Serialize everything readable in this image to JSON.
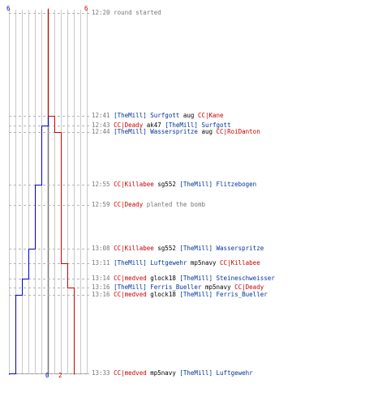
{
  "colors": {
    "blue": "#0000cc",
    "red": "#cc0000",
    "team_blue_text": "#003399",
    "grid": "#c8c8c8",
    "dash": "#b4b4b4"
  },
  "counts": {
    "blue_start": "6",
    "red_start": "6",
    "blue_end": "0",
    "red_end": "2"
  },
  "events": [
    {
      "time": "12:20",
      "text": "round started",
      "type": "info"
    },
    {
      "time": "12:41",
      "killer_tag": "[TheMill]",
      "killer": "Surfgott",
      "killer_team": "blue",
      "weapon": "aug",
      "victim_tag": "CC|",
      "victim": "Kane",
      "victim_team": "red",
      "blue_after": 6,
      "red_after": 5
    },
    {
      "time": "12:43",
      "killer_tag": "CC|",
      "killer": "Deady",
      "killer_team": "red",
      "weapon": "ak47",
      "victim_tag": "[TheMill]",
      "victim": "Surfgott",
      "victim_team": "blue",
      "blue_after": 5,
      "red_after": 5
    },
    {
      "time": "12:44",
      "killer_tag": "[TheMill]",
      "killer": "Wasserspritze",
      "killer_team": "blue",
      "weapon": "aug",
      "victim_tag": "CC|",
      "victim": "RoiDanton",
      "victim_team": "red",
      "blue_after": 5,
      "red_after": 4
    },
    {
      "time": "12:55",
      "killer_tag": "CC|",
      "killer": "Killabee",
      "killer_team": "red",
      "weapon": "sg552",
      "victim_tag": "[TheMill]",
      "victim": "Flitzebogen",
      "victim_team": "blue",
      "blue_after": 4,
      "red_after": 4
    },
    {
      "time": "12:59",
      "actor_tag": "CC|",
      "actor": "Deady",
      "actor_team": "red",
      "text": "planted the bomb",
      "type": "info"
    },
    {
      "time": "13:08",
      "killer_tag": "CC|",
      "killer": "Killabee",
      "killer_team": "red",
      "weapon": "sg552",
      "victim_tag": "[TheMill]",
      "victim": "Wasserspritze",
      "victim_team": "blue",
      "blue_after": 3,
      "red_after": 4
    },
    {
      "time": "13:11",
      "killer_tag": "[TheMill]",
      "killer": "Luftgewehr",
      "killer_team": "blue",
      "weapon": "mp5navy",
      "victim_tag": "CC|",
      "victim": "Killabee",
      "victim_team": "red",
      "blue_after": 3,
      "red_after": 3
    },
    {
      "time": "13:14",
      "killer_tag": "CC|",
      "killer": "medved",
      "killer_team": "red",
      "weapon": "glock18",
      "victim_tag": "[TheMill]",
      "victim": "Steineschweisser",
      "victim_team": "blue",
      "blue_after": 2,
      "red_after": 3
    },
    {
      "time": "13:16",
      "killer_tag": "[TheMill]",
      "killer": "Ferris_Bueller",
      "killer_team": "blue",
      "weapon": "mp5navy",
      "victim_tag": "CC|",
      "victim": "Deady",
      "victim_team": "red",
      "blue_after": 2,
      "red_after": 2
    },
    {
      "time": "13:16",
      "killer_tag": "CC|",
      "killer": "medved",
      "killer_team": "red",
      "weapon": "glock18",
      "victim_tag": "[TheMill]",
      "victim": "Ferris_Bueller",
      "victim_team": "blue",
      "blue_after": 1,
      "red_after": 2
    },
    {
      "time": "13:33",
      "killer_tag": "CC|",
      "killer": "medved",
      "killer_team": "red",
      "weapon": "mp5navy",
      "victim_tag": "[TheMill]",
      "victim": "Luftgewehr",
      "victim_team": "blue",
      "blue_after": 0,
      "red_after": 2
    }
  ]
}
